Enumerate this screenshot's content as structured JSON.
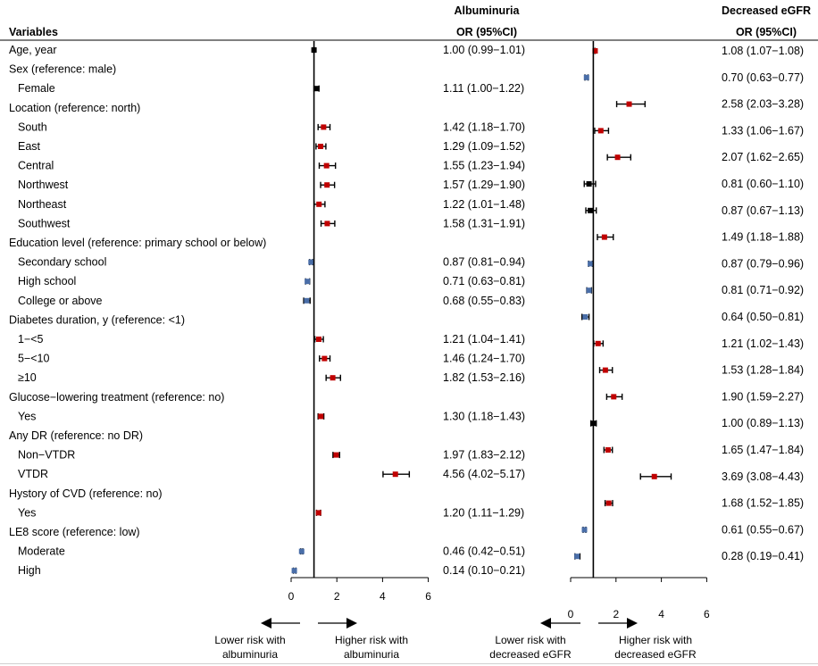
{
  "headers": {
    "variables": "Variables",
    "albuminuria_title": "Albuminuria",
    "albuminuria_or": "OR (95%CI)",
    "egfr_title": "Decreased eGFR",
    "egfr_or": "OR (95%CI)"
  },
  "colors": {
    "risk": "#c00000",
    "protective": "#4a6ea8",
    "neutral": "#000000"
  },
  "captions": {
    "alb_lower": [
      "Lower risk with",
      "albuminuria"
    ],
    "alb_higher": [
      "Higher risk with",
      "albuminuria"
    ],
    "egfr_lower": [
      "Lower risk with",
      "decreased eGFR"
    ],
    "egfr_higher": [
      "Higher risk with",
      "decreased eGFR"
    ]
  },
  "chart_data": [
    {
      "type": "forest",
      "outcome": "Albuminuria",
      "xlim": [
        0,
        6
      ],
      "xticks": [
        0,
        2,
        4,
        6
      ],
      "reference_line": 1,
      "rows": [
        {
          "label": "Age, year",
          "indent": false,
          "or": 1.0,
          "lo": 0.99,
          "hi": 1.01,
          "text": "1.00 (0.99−1.01)"
        },
        {
          "label": "Sex (reference: male)",
          "indent": false
        },
        {
          "label": "Female",
          "indent": true,
          "or": 1.11,
          "lo": 1.0,
          "hi": 1.22,
          "text": "1.11 (1.00−1.22)"
        },
        {
          "label": "Location (reference: north)",
          "indent": false
        },
        {
          "label": "South",
          "indent": true,
          "or": 1.42,
          "lo": 1.18,
          "hi": 1.7,
          "text": "1.42 (1.18−1.70)"
        },
        {
          "label": "East",
          "indent": true,
          "or": 1.29,
          "lo": 1.09,
          "hi": 1.52,
          "text": "1.29 (1.09−1.52)"
        },
        {
          "label": "Central",
          "indent": true,
          "or": 1.55,
          "lo": 1.23,
          "hi": 1.94,
          "text": "1.55 (1.23−1.94)"
        },
        {
          "label": "Northwest",
          "indent": true,
          "or": 1.57,
          "lo": 1.29,
          "hi": 1.9,
          "text": "1.57 (1.29−1.90)"
        },
        {
          "label": "Northeast",
          "indent": true,
          "or": 1.22,
          "lo": 1.01,
          "hi": 1.48,
          "text": "1.22 (1.01−1.48)"
        },
        {
          "label": "Southwest",
          "indent": true,
          "or": 1.58,
          "lo": 1.31,
          "hi": 1.91,
          "text": "1.58 (1.31−1.91)"
        },
        {
          "label": "Education level (reference: primary school or below)",
          "indent": false
        },
        {
          "label": "Secondary school",
          "indent": true,
          "or": 0.87,
          "lo": 0.81,
          "hi": 0.94,
          "text": "0.87 (0.81−0.94)"
        },
        {
          "label": "High school",
          "indent": true,
          "or": 0.71,
          "lo": 0.63,
          "hi": 0.81,
          "text": "0.71 (0.63−0.81)"
        },
        {
          "label": "College or above",
          "indent": true,
          "or": 0.68,
          "lo": 0.55,
          "hi": 0.83,
          "text": "0.68 (0.55−0.83)"
        },
        {
          "label": "Diabetes duration, y (reference: <1)",
          "indent": false
        },
        {
          "label": "1−<5",
          "indent": true,
          "or": 1.21,
          "lo": 1.04,
          "hi": 1.41,
          "text": "1.21 (1.04−1.41)"
        },
        {
          "label": "5−<10",
          "indent": true,
          "or": 1.46,
          "lo": 1.24,
          "hi": 1.7,
          "text": "1.46 (1.24−1.70)"
        },
        {
          "label": "≥10",
          "indent": true,
          "or": 1.82,
          "lo": 1.53,
          "hi": 2.16,
          "text": "1.82 (1.53−2.16)"
        },
        {
          "label": "Glucose−lowering treatment (reference: no)",
          "indent": false
        },
        {
          "label": "Yes",
          "indent": true,
          "or": 1.3,
          "lo": 1.18,
          "hi": 1.43,
          "text": "1.30 (1.18−1.43)"
        },
        {
          "label": "Any DR (reference: no DR)",
          "indent": false
        },
        {
          "label": "Non−VTDR",
          "indent": true,
          "or": 1.97,
          "lo": 1.83,
          "hi": 2.12,
          "text": "1.97 (1.83−2.12)"
        },
        {
          "label": "VTDR",
          "indent": true,
          "or": 4.56,
          "lo": 4.02,
          "hi": 5.17,
          "text": "4.56 (4.02−5.17)"
        },
        {
          "label": "Hystory of CVD (reference: no)",
          "indent": false
        },
        {
          "label": "Yes",
          "indent": true,
          "or": 1.2,
          "lo": 1.11,
          "hi": 1.29,
          "text": "1.20 (1.11−1.29)"
        },
        {
          "label": "LE8 score (reference: low)",
          "indent": false
        },
        {
          "label": "Moderate",
          "indent": true,
          "or": 0.46,
          "lo": 0.42,
          "hi": 0.51,
          "text": "0.46 (0.42−0.51)"
        },
        {
          "label": "High",
          "indent": true,
          "or": 0.14,
          "lo": 0.1,
          "hi": 0.21,
          "text": "0.14 (0.10−0.21)"
        }
      ]
    },
    {
      "type": "forest",
      "outcome": "Decreased eGFR",
      "xlim": [
        0,
        6
      ],
      "xticks": [
        0,
        2,
        4,
        6
      ],
      "reference_line": 1,
      "rows": [
        {
          "label": "Age, year",
          "or": 1.08,
          "lo": 1.07,
          "hi": 1.08,
          "text": "1.08 (1.07−1.08)"
        },
        {
          "label": "Female",
          "or": 0.7,
          "lo": 0.63,
          "hi": 0.77,
          "text": "0.70 (0.63−0.77)"
        },
        {
          "label": "South",
          "or": 2.58,
          "lo": 2.03,
          "hi": 3.28,
          "text": "2.58 (2.03−3.28)"
        },
        {
          "label": "East",
          "or": 1.33,
          "lo": 1.06,
          "hi": 1.67,
          "text": "1.33 (1.06−1.67)"
        },
        {
          "label": "Central",
          "or": 2.07,
          "lo": 1.62,
          "hi": 2.65,
          "text": "2.07 (1.62−2.65)"
        },
        {
          "label": "Northwest",
          "or": 0.81,
          "lo": 0.6,
          "hi": 1.1,
          "text": "0.81 (0.60−1.10)"
        },
        {
          "label": "Northeast",
          "or": 0.87,
          "lo": 0.67,
          "hi": 1.13,
          "text": "0.87 (0.67−1.13)"
        },
        {
          "label": "Southwest",
          "or": 1.49,
          "lo": 1.18,
          "hi": 1.88,
          "text": "1.49 (1.18−1.88)"
        },
        {
          "label": "Secondary school",
          "or": 0.87,
          "lo": 0.79,
          "hi": 0.96,
          "text": "0.87 (0.79−0.96)"
        },
        {
          "label": "High school",
          "or": 0.81,
          "lo": 0.71,
          "hi": 0.92,
          "text": "0.81 (0.71−0.92)"
        },
        {
          "label": "College or above",
          "or": 0.64,
          "lo": 0.5,
          "hi": 0.81,
          "text": "0.64 (0.50−0.81)"
        },
        {
          "label": "1−<5",
          "or": 1.21,
          "lo": 1.02,
          "hi": 1.43,
          "text": "1.21 (1.02−1.43)"
        },
        {
          "label": "5−<10",
          "or": 1.53,
          "lo": 1.28,
          "hi": 1.84,
          "text": "1.53 (1.28−1.84)"
        },
        {
          "label": "≥10",
          "or": 1.9,
          "lo": 1.59,
          "hi": 2.27,
          "text": "1.90 (1.59−2.27)"
        },
        {
          "label": "Yes",
          "or": 1.0,
          "lo": 0.89,
          "hi": 1.13,
          "text": "1.00 (0.89−1.13)"
        },
        {
          "label": "Non−VTDR",
          "or": 1.65,
          "lo": 1.47,
          "hi": 1.84,
          "text": "1.65 (1.47−1.84)"
        },
        {
          "label": "VTDR",
          "or": 3.69,
          "lo": 3.08,
          "hi": 4.43,
          "text": "3.69 (3.08−4.43)"
        },
        {
          "label": "Yes",
          "or": 1.68,
          "lo": 1.52,
          "hi": 1.85,
          "text": "1.68 (1.52−1.85)"
        },
        {
          "label": "Moderate",
          "or": 0.61,
          "lo": 0.55,
          "hi": 0.67,
          "text": "0.61 (0.55−0.67)"
        },
        {
          "label": "High",
          "or": 0.28,
          "lo": 0.19,
          "hi": 0.41,
          "text": "0.28 (0.19−0.41)"
        }
      ]
    }
  ]
}
